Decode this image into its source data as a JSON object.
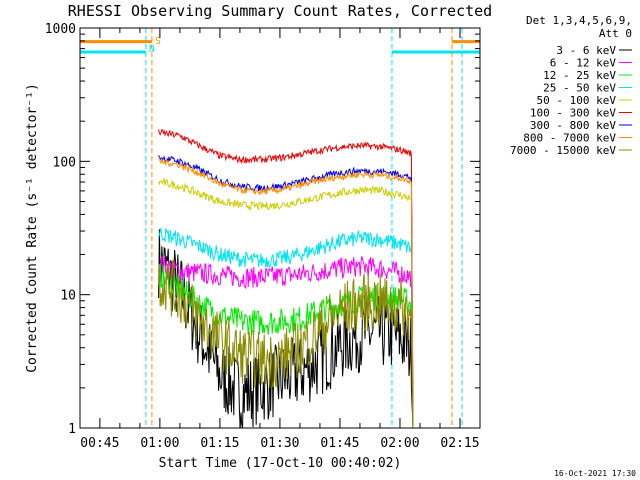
{
  "chart_data": {
    "type": "line",
    "title": "RHESSI Observing Summary Count Rates, Corrected",
    "xlabel": "Start Time (17-Oct-10 00:40:02)",
    "ylabel": "Corrected Count Rate (s⁻¹ detector⁻¹)",
    "y_scale": "log",
    "ylim": [
      1,
      1000
    ],
    "xlim": [
      "00:40:02",
      "02:20:00"
    ],
    "x_ticks": [
      "00:45",
      "01:00",
      "01:15",
      "01:30",
      "01:45",
      "02:00",
      "02:15"
    ],
    "y_ticks": [
      "1",
      "10",
      "100",
      "1000"
    ],
    "legend_header": [
      "Det 1,3,4,5,6,9,",
      "Att 0"
    ],
    "legend_position": "right",
    "timestamp": "16-Oct-2021 17:30",
    "markers": [
      {
        "label": "S",
        "color": "#ff8c00",
        "times": [
          "00:58:00",
          "02:13:00"
        ]
      },
      {
        "label": "N",
        "color": "#00e5ee",
        "times": [
          "00:56:30",
          "01:58:00",
          "02:15:30"
        ]
      }
    ],
    "flags": [
      {
        "name": "S",
        "color": "#ff8c00",
        "segments": [
          [
            "00:40:02",
            "00:58:00"
          ],
          [
            "02:13:00",
            "02:20:00"
          ]
        ],
        "level": 790
      },
      {
        "name": "N",
        "color": "#00e5ee",
        "segments": [
          [
            "00:40:02",
            "00:56:30"
          ],
          [
            "01:58:00",
            "02:20:00"
          ]
        ],
        "level": 660
      }
    ],
    "x": [
      "01:00",
      "01:05",
      "01:10",
      "01:15",
      "01:20",
      "01:25",
      "01:30",
      "01:35",
      "01:40",
      "01:45",
      "01:50",
      "01:55",
      "02:00",
      "02:03"
    ],
    "series": [
      {
        "name": "3 - 6 keV",
        "color": "#000000",
        "values": [
          18,
          11,
          5,
          2.5,
          1.8,
          2.0,
          2.3,
          2.6,
          3.2,
          4.2,
          5.0,
          5.2,
          4.8,
          3.8
        ]
      },
      {
        "name": "6 - 12 keV",
        "color": "#ff00ff",
        "values": [
          17,
          15,
          14.5,
          14,
          13.5,
          13.5,
          13.8,
          14.2,
          15,
          15.8,
          16.3,
          15.8,
          14.5,
          13.5
        ]
      },
      {
        "name": "12 - 25 keV",
        "color": "#00ee00",
        "values": [
          14,
          11,
          8.5,
          7,
          6.3,
          6.2,
          6.3,
          6.6,
          7.6,
          8.5,
          9.3,
          9.6,
          9.3,
          8.5
        ]
      },
      {
        "name": "25 - 50 keV",
        "color": "#00e5ee",
        "values": [
          29,
          26,
          23,
          20,
          18.5,
          18,
          18.5,
          20,
          22.5,
          25,
          26.5,
          26,
          24,
          22
        ]
      },
      {
        "name": "50 - 100 keV",
        "color": "#cccc00",
        "values": [
          70,
          65,
          57,
          50,
          47,
          46,
          47,
          50,
          54,
          58,
          61,
          60,
          56,
          52
        ]
      },
      {
        "name": "100 - 300 keV",
        "color": "#ee0000",
        "values": [
          165,
          155,
          130,
          110,
          103,
          103,
          106,
          113,
          121,
          128,
          131,
          129,
          122,
          114
        ]
      },
      {
        "name": "300 - 800 keV",
        "color": "#0000ee",
        "values": [
          107,
          100,
          86,
          72,
          65,
          63,
          65,
          70,
          76,
          82,
          85,
          84,
          80,
          75
        ]
      },
      {
        "name": "800 - 7000 keV",
        "color": "#ff8c00",
        "values": [
          100,
          94,
          81,
          68,
          61,
          59,
          61,
          66,
          72,
          77,
          80,
          79,
          75,
          71
        ]
      },
      {
        "name": "7000 - 15000 keV",
        "color": "#8b8b00",
        "values": [
          13,
          10,
          6.5,
          4.5,
          3.6,
          3.2,
          3.3,
          4.0,
          5.5,
          7.5,
          8.7,
          8.8,
          8.2,
          7.0
        ]
      }
    ]
  }
}
